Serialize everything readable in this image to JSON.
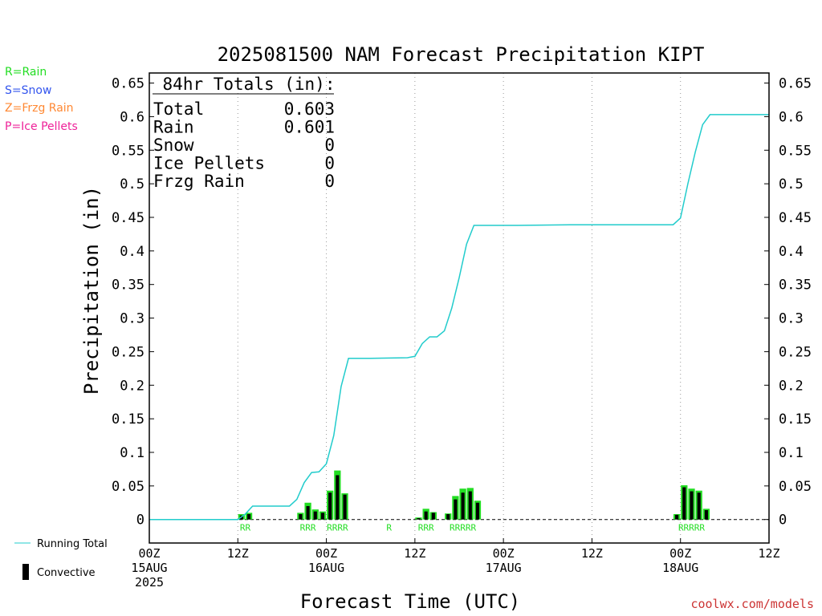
{
  "legend_keys": [
    {
      "label": "R=Rain",
      "color": "#22dd22"
    },
    {
      "label": "S=Snow",
      "color": "#3355ee"
    },
    {
      "label": "Z=Frzg Rain",
      "color": "#ff8833"
    },
    {
      "label": "P=Ice Pellets",
      "color": "#ee2299"
    }
  ],
  "colors": {
    "running_total": "#22cccc",
    "rain_bar": "#22dd22",
    "convective_bar": "#000000"
  },
  "credit": "coolwx.com/models",
  "chart_data": {
    "type": "bar",
    "title": "2025081500 NAM Forecast Precipitation KIPT",
    "xlabel": "Forecast Time (UTC)",
    "ylabel": "Precipitation (in)",
    "ylim": [
      -0.035,
      0.665
    ],
    "xlim_hours": [
      0,
      84
    ],
    "yticks": [
      "0",
      "0.05",
      "0.1",
      "0.15",
      "0.2",
      "0.25",
      "0.3",
      "0.35",
      "0.4",
      "0.45",
      "0.5",
      "0.55",
      "0.6",
      "0.65"
    ],
    "ytick_values": [
      0,
      0.05,
      0.1,
      0.15,
      0.2,
      0.25,
      0.3,
      0.35,
      0.4,
      0.45,
      0.5,
      0.55,
      0.6,
      0.65
    ],
    "xticks": [
      {
        "hour": 0,
        "label": "00Z",
        "date": "15AUG",
        "year": "2025"
      },
      {
        "hour": 12,
        "label": "12Z",
        "date": "",
        "year": ""
      },
      {
        "hour": 24,
        "label": "00Z",
        "date": "16AUG",
        "year": ""
      },
      {
        "hour": 36,
        "label": "12Z",
        "date": "",
        "year": ""
      },
      {
        "hour": 48,
        "label": "00Z",
        "date": "17AUG",
        "year": ""
      },
      {
        "hour": 60,
        "label": "12Z",
        "date": "",
        "year": ""
      },
      {
        "hour": 72,
        "label": "00Z",
        "date": "18AUG",
        "year": ""
      },
      {
        "hour": 84,
        "label": "12Z",
        "date": "",
        "year": ""
      }
    ],
    "grid": "vertical-dotted",
    "totals_box": {
      "heading": "84hr Totals (in):",
      "rows": [
        {
          "label": "Total",
          "value": "0.603"
        },
        {
          "label": "Rain",
          "value": "0.601"
        },
        {
          "label": "Snow",
          "value": "0"
        },
        {
          "label": "Ice Pellets",
          "value": "0"
        },
        {
          "label": "Frzg Rain",
          "value": "0"
        }
      ]
    },
    "series": [
      {
        "name": "Running Total",
        "type": "line",
        "points": [
          [
            0,
            0
          ],
          [
            12,
            0
          ],
          [
            13,
            0.008
          ],
          [
            14,
            0.02
          ],
          [
            19,
            0.02
          ],
          [
            20,
            0.03
          ],
          [
            21,
            0.055
          ],
          [
            22,
            0.07
          ],
          [
            23,
            0.071
          ],
          [
            24,
            0.083
          ],
          [
            25,
            0.125
          ],
          [
            26,
            0.198
          ],
          [
            27,
            0.24
          ],
          [
            30,
            0.24
          ],
          [
            35,
            0.241
          ],
          [
            36,
            0.243
          ],
          [
            37,
            0.262
          ],
          [
            38,
            0.272
          ],
          [
            39,
            0.272
          ],
          [
            40,
            0.281
          ],
          [
            41,
            0.315
          ],
          [
            42,
            0.36
          ],
          [
            43,
            0.41
          ],
          [
            44,
            0.438
          ],
          [
            50,
            0.438
          ],
          [
            57,
            0.439
          ],
          [
            65,
            0.439
          ],
          [
            71,
            0.439
          ],
          [
            72,
            0.449
          ],
          [
            73,
            0.5
          ],
          [
            74,
            0.547
          ],
          [
            75,
            0.588
          ],
          [
            76,
            0.603
          ],
          [
            84,
            0.603
          ]
        ]
      },
      {
        "name": "Convective",
        "type": "bar",
        "bars": [
          [
            12.5,
            0.008,
            0.006
          ],
          [
            13.5,
            0.01,
            0.008
          ],
          [
            20.5,
            0.01,
            0.008
          ],
          [
            21.5,
            0.025,
            0.02
          ],
          [
            22.5,
            0.015,
            0.012
          ],
          [
            23.5,
            0.012,
            0.01
          ],
          [
            24.5,
            0.043,
            0.04
          ],
          [
            25.5,
            0.073,
            0.066
          ],
          [
            26.5,
            0.039,
            0.037
          ],
          [
            36.5,
            0.003,
            0.002
          ],
          [
            37.5,
            0.016,
            0.012
          ],
          [
            38.5,
            0.011,
            0.01
          ],
          [
            40.5,
            0.009,
            0.008
          ],
          [
            41.5,
            0.035,
            0.03
          ],
          [
            42.5,
            0.046,
            0.04
          ],
          [
            43.5,
            0.047,
            0.042
          ],
          [
            44.5,
            0.028,
            0.025
          ],
          [
            71.5,
            0.008,
            0.007
          ],
          [
            72.5,
            0.051,
            0.048
          ],
          [
            73.5,
            0.046,
            0.042
          ],
          [
            74.5,
            0.043,
            0.04
          ],
          [
            75.5,
            0.016,
            0.014
          ]
        ]
      }
    ],
    "ptype_marks": [
      {
        "hour": 13,
        "text": "RR"
      },
      {
        "hour": 21.5,
        "text": "RRR"
      },
      {
        "hour": 25.5,
        "text": "RRRR"
      },
      {
        "hour": 32.5,
        "text": "R"
      },
      {
        "hour": 37.5,
        "text": "RRR"
      },
      {
        "hour": 42.5,
        "text": "RRRRR"
      },
      {
        "hour": 73.5,
        "text": "RRRRR"
      }
    ],
    "legend": [
      {
        "label": "Running Total",
        "kind": "line"
      },
      {
        "label": "Convective",
        "kind": "bar"
      }
    ]
  }
}
